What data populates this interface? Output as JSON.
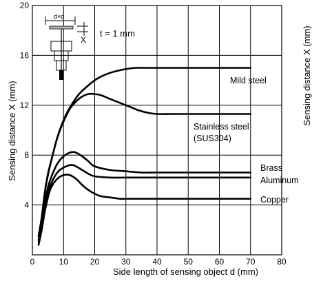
{
  "chart_data": {
    "type": "line",
    "xlabel": "Side length of sensing object d (mm)",
    "ylabel": "Sensing distance X (mm)",
    "ylabel_right": "Sensing distance X (mm)",
    "xlim": [
      0,
      80
    ],
    "ylim": [
      0,
      20
    ],
    "xticks": [
      "0",
      "10",
      "20",
      "30",
      "40",
      "50",
      "60",
      "70",
      "80"
    ],
    "yticks": [
      "4",
      "8",
      "12",
      "16",
      "20"
    ],
    "grid": true,
    "annotation": "t = 1 mm",
    "inset_labels": {
      "d": "d×d",
      "x": "X"
    },
    "series": [
      {
        "name": "Mild steel",
        "x": [
          2,
          3,
          4,
          5,
          6,
          8,
          10,
          12,
          15,
          18,
          20,
          22,
          25,
          28,
          30,
          33,
          35,
          40,
          50,
          60,
          70
        ],
        "y": [
          1.5,
          3,
          5,
          6.4,
          7.5,
          9.4,
          10.8,
          11.8,
          12.9,
          13.6,
          14,
          14.3,
          14.6,
          14.8,
          14.9,
          15,
          15,
          15,
          15,
          15,
          15
        ]
      },
      {
        "name": "Stainless steel (SUS304)",
        "x": [
          2,
          3,
          4,
          5,
          6,
          8,
          10,
          12,
          14,
          16,
          18,
          20,
          22,
          25,
          28,
          31,
          34,
          37,
          40,
          45,
          50,
          60,
          70
        ],
        "y": [
          1.5,
          3,
          5,
          6.5,
          7.5,
          9.4,
          10.7,
          11.7,
          12.3,
          12.7,
          12.9,
          12.9,
          12.8,
          12.5,
          12.2,
          11.9,
          11.6,
          11.4,
          11.3,
          11.3,
          11.3,
          11.3,
          11.3
        ]
      },
      {
        "name": "Brass",
        "x": [
          2,
          3,
          4,
          5,
          6,
          8,
          10,
          12,
          13,
          14,
          16,
          18,
          20,
          25,
          30,
          35,
          40,
          50,
          60,
          70
        ],
        "y": [
          1.2,
          2.5,
          4.2,
          5.4,
          6.2,
          7.3,
          7.9,
          8.2,
          8.25,
          8.2,
          7.9,
          7.5,
          7.1,
          6.8,
          6.7,
          6.6,
          6.6,
          6.6,
          6.6,
          6.6
        ]
      },
      {
        "name": "Aluminum",
        "x": [
          2,
          3,
          4,
          5,
          6,
          8,
          10,
          12,
          13,
          14,
          16,
          18,
          20,
          25,
          30,
          35,
          40,
          50,
          60,
          70
        ],
        "y": [
          1,
          2.2,
          3.8,
          4.9,
          5.7,
          6.6,
          7,
          7.2,
          7.2,
          7.1,
          6.8,
          6.5,
          6.3,
          6.2,
          6.2,
          6.2,
          6.2,
          6.2,
          6.2,
          6.2
        ]
      },
      {
        "name": "Copper",
        "x": [
          2,
          3,
          4,
          5,
          6,
          8,
          10,
          12,
          14,
          16,
          18,
          20,
          22,
          25,
          28,
          30,
          35,
          40,
          50,
          60,
          70
        ],
        "y": [
          0.8,
          2,
          3.5,
          4.6,
          5.4,
          6.1,
          6.4,
          6.4,
          6.1,
          5.6,
          5.2,
          4.9,
          4.7,
          4.6,
          4.5,
          4.5,
          4.5,
          4.5,
          4.5,
          4.5,
          4.5
        ]
      }
    ],
    "series_labels": {
      "mild_steel": "Mild steel",
      "stainless_1": "Stainless steel",
      "stainless_2": "(SUS304)",
      "brass": "Brass",
      "aluminum": "Aluminum",
      "copper": "Copper"
    }
  }
}
